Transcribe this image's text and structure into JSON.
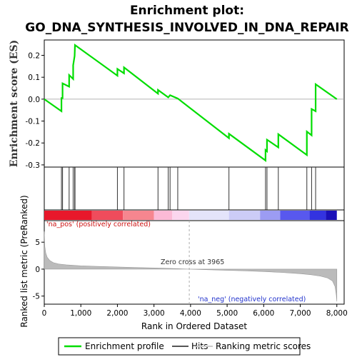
{
  "chart_data": {
    "type": "line",
    "title_line1": "Enrichment plot:",
    "title_line2": "GO_DNA_SYNTHESIS_INVOLVED_IN_DNA_REPAIR",
    "es_ylabel": "Enrichment score (ES)",
    "metric_ylabel": "Ranked list metric (PreRanked)",
    "xlabel": "Rank in Ordered Dataset",
    "xlim": [
      0,
      8200
    ],
    "es_ylim": [
      -0.31,
      0.27
    ],
    "metric_ylim": [
      -6.5,
      9
    ],
    "x_ticks": [
      0,
      1000,
      2000,
      3000,
      4000,
      5000,
      6000,
      7000,
      8000
    ],
    "x_tick_labels": [
      "0",
      "1,000",
      "2,000",
      "3,000",
      "4,000",
      "5,000",
      "6,000",
      "7,000",
      "8,000"
    ],
    "es_ticks": [
      -0.3,
      -0.2,
      -0.1,
      0.0,
      0.1,
      0.2
    ],
    "es_tick_labels": [
      "-0.3",
      "-0.2",
      "-0.1",
      "0.0",
      "0.1",
      "0.2"
    ],
    "metric_ticks": [
      -5,
      0,
      5
    ],
    "metric_tick_labels": [
      "-5",
      "0",
      "5"
    ],
    "hits": [
      470,
      500,
      680,
      790,
      830,
      840,
      2000,
      2180,
      3110,
      3390,
      3440,
      3650,
      5050,
      6050,
      6090,
      6400,
      7180,
      7310,
      7420
    ],
    "enrichment_profile": [
      [
        0,
        0.0
      ],
      [
        470,
        -0.055
      ],
      [
        470,
        0.005
      ],
      [
        500,
        0.005
      ],
      [
        500,
        0.072
      ],
      [
        680,
        0.057
      ],
      [
        680,
        0.11
      ],
      [
        790,
        0.092
      ],
      [
        790,
        0.155
      ],
      [
        830,
        0.197
      ],
      [
        840,
        0.247
      ],
      [
        2000,
        0.107
      ],
      [
        2000,
        0.138
      ],
      [
        2180,
        0.118
      ],
      [
        2180,
        0.145
      ],
      [
        3110,
        0.025
      ],
      [
        3110,
        0.042
      ],
      [
        3390,
        0.008
      ],
      [
        3440,
        0.018
      ],
      [
        3650,
        0.003
      ],
      [
        5050,
        -0.178
      ],
      [
        5050,
        -0.158
      ],
      [
        6050,
        -0.28
      ],
      [
        6050,
        -0.232
      ],
      [
        6090,
        -0.238
      ],
      [
        6090,
        -0.185
      ],
      [
        6400,
        -0.22
      ],
      [
        6400,
        -0.16
      ],
      [
        7180,
        -0.255
      ],
      [
        7180,
        -0.148
      ],
      [
        7310,
        -0.165
      ],
      [
        7310,
        -0.045
      ],
      [
        7420,
        -0.055
      ],
      [
        7420,
        0.068
      ],
      [
        8000,
        0.0
      ]
    ],
    "metric_profile": [
      [
        0,
        7.0
      ],
      [
        15,
        4.2
      ],
      [
        40,
        3.0
      ],
      [
        80,
        2.2
      ],
      [
        150,
        1.6
      ],
      [
        250,
        1.2
      ],
      [
        400,
        0.95
      ],
      [
        600,
        0.8
      ],
      [
        1000,
        0.62
      ],
      [
        1500,
        0.5
      ],
      [
        2000,
        0.4
      ],
      [
        2500,
        0.3
      ],
      [
        3000,
        0.22
      ],
      [
        3500,
        0.12
      ],
      [
        3965,
        0.0
      ],
      [
        4500,
        -0.12
      ],
      [
        5000,
        -0.22
      ],
      [
        5500,
        -0.32
      ],
      [
        6000,
        -0.45
      ],
      [
        6500,
        -0.62
      ],
      [
        7000,
        -0.85
      ],
      [
        7300,
        -1.05
      ],
      [
        7550,
        -1.3
      ],
      [
        7750,
        -1.65
      ],
      [
        7880,
        -2.2
      ],
      [
        7950,
        -3.2
      ],
      [
        7985,
        -4.8
      ],
      [
        8000,
        -6.0
      ]
    ],
    "color_bar_segments": [
      {
        "from": 0,
        "to": 1300,
        "color": "#e8182b"
      },
      {
        "from": 1300,
        "to": 2150,
        "color": "#ef4c5c"
      },
      {
        "from": 2150,
        "to": 3000,
        "color": "#f6868f"
      },
      {
        "from": 3000,
        "to": 3500,
        "color": "#fbbad6"
      },
      {
        "from": 3500,
        "to": 3960,
        "color": "#fbd6ee"
      },
      {
        "from": 3960,
        "to": 5050,
        "color": "#e4e4fa"
      },
      {
        "from": 5050,
        "to": 5900,
        "color": "#ccccf7"
      },
      {
        "from": 5900,
        "to": 6450,
        "color": "#9c9cf3"
      },
      {
        "from": 6450,
        "to": 7250,
        "color": "#5858ee"
      },
      {
        "from": 7250,
        "to": 7700,
        "color": "#3333e0"
      },
      {
        "from": 7700,
        "to": 8000,
        "color": "#1a10b8"
      }
    ],
    "zero_cross_label": "Zero cross at 3965",
    "zero_cross_rank": 3965,
    "pos_label": "'na_pos' (positively correlated)",
    "neg_label": "'na_neg' (negatively correlated)",
    "legend": [
      {
        "label": "Enrichment profile",
        "color": "#00dd00"
      },
      {
        "label": "Hits",
        "color": "#555555"
      },
      {
        "label": "Ranking metric scores",
        "color": "#cccccc"
      }
    ],
    "colors": {
      "profile": "#00dd00",
      "hit": "#333333",
      "metric_fill": "#bbbbbb",
      "pos_text": "#cc1111",
      "neg_text": "#2233cc"
    }
  }
}
